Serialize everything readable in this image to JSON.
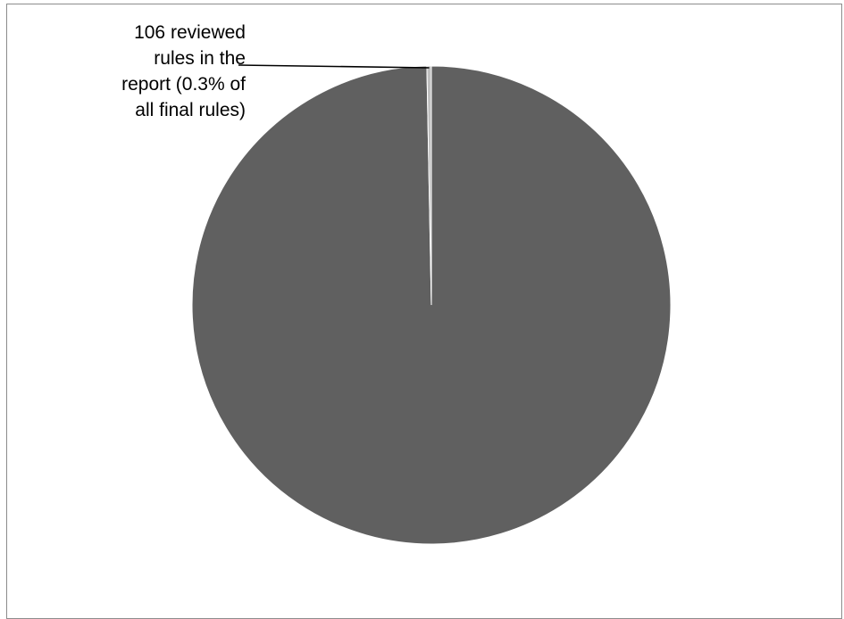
{
  "chart_data": {
    "type": "pie",
    "title": "",
    "slices": [
      {
        "value": 99.7,
        "label": "",
        "color": "#606060"
      },
      {
        "value": 0.3,
        "label": "106 reviewed rules in the report (0.3% of all final rules)",
        "color": "#bfbfbf"
      }
    ],
    "legend": false,
    "data_label_lines": [
      "106 reviewed",
      "rules in the",
      "report (0.3% of",
      "all final rules)"
    ],
    "colors": {
      "frame": "#8c8c8c",
      "slice_edge": "#ffffff",
      "leader_line": "#000000"
    }
  }
}
